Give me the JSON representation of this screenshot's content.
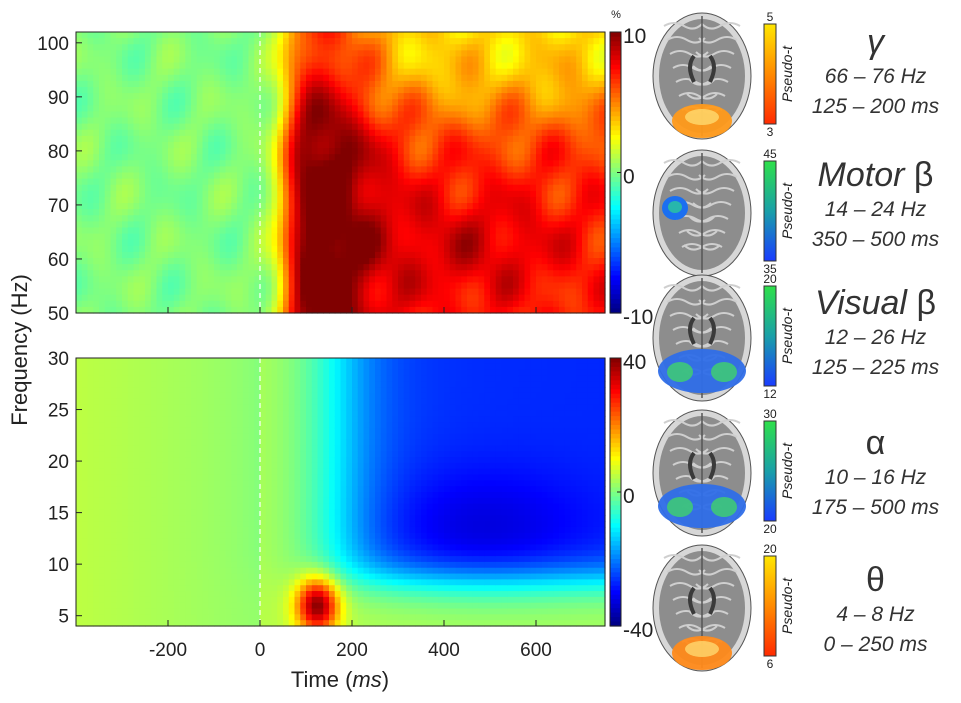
{
  "chart_data": [
    {
      "type": "heatmap",
      "title": "",
      "xlabel": "Time (ms)",
      "ylabel": "Frequency (Hz)",
      "xlim": [
        -400,
        750
      ],
      "ylim": [
        50,
        102
      ],
      "x_ticks": [
        -200,
        0,
        200,
        400,
        600
      ],
      "x_tick_labels": [
        "-200",
        "0",
        "200",
        "400",
        "600"
      ],
      "y_ticks": [
        50,
        60,
        70,
        80,
        90,
        100
      ],
      "y_tick_labels": [
        "50",
        "60",
        "70",
        "80",
        "90",
        "100"
      ],
      "show_x_tick_labels": false,
      "stimulus_onset_line_x": 0,
      "colorbar": {
        "min": -10,
        "max": 10,
        "unit": "%",
        "ticks": [
          10,
          0,
          -10
        ],
        "tick_labels": [
          "10",
          "0",
          "-10"
        ],
        "colormap": "jet"
      },
      "description_values": [
        {
          "region": "pre-stimulus (-400 to 0 ms, 50-102 Hz)",
          "value": 0
        },
        {
          "region": "post-stimulus 50-100 ms onset (all frequencies)",
          "value": 4
        },
        {
          "region": "100-750 ms, 50-90 Hz",
          "value": 8
        },
        {
          "region": "350-600 ms, 55-70 Hz (peak)",
          "value": 10
        },
        {
          "region": "400-750 ms, 90-102 Hz",
          "value": 4
        }
      ]
    },
    {
      "type": "heatmap",
      "title": "",
      "xlabel": "Time (ms)",
      "ylabel": "Frequency (Hz)",
      "xlim": [
        -400,
        750
      ],
      "ylim": [
        4,
        30
      ],
      "x_ticks": [
        -200,
        0,
        200,
        400,
        600
      ],
      "x_tick_labels": [
        "-200",
        "0",
        "200",
        "400",
        "600"
      ],
      "y_ticks": [
        5,
        10,
        15,
        20,
        25,
        30
      ],
      "y_tick_labels": [
        "5",
        "10",
        "15",
        "20",
        "25",
        "30"
      ],
      "stimulus_onset_line_x": 0,
      "colorbar": {
        "min": -40,
        "max": 40,
        "unit": "%",
        "ticks": [
          40,
          0,
          -40
        ],
        "tick_labels": [
          "40",
          "0",
          "-40"
        ],
        "colormap": "jet"
      },
      "description_values": [
        {
          "region": "pre-stimulus (-400 to 0 ms)",
          "value": 5
        },
        {
          "region": "100-170 ms, 4-9 Hz (theta peak)",
          "value": 35
        },
        {
          "region": "300-700 ms, 8-22 Hz (alpha/beta decrease)",
          "value": -38
        },
        {
          "region": "250-750 ms, 20-30 Hz",
          "value": -25
        }
      ]
    }
  ],
  "axes_shared": {
    "ylabel": "Frequency (Hz)",
    "xlabel_prefix": "Time (",
    "xlabel_unit": "ms",
    "xlabel_suffix": ")"
  },
  "colorbar_unit_label": "%",
  "colors": {
    "line_dashed": "#ffffff",
    "axis": "#222222",
    "text": "#222222",
    "brain_gray": "#8d8d8d"
  },
  "bands": [
    {
      "prefix": "",
      "symbol": "γ",
      "range": "66 – 76 Hz",
      "window": "125 – 200 ms",
      "legend_label": "Pseudo-t",
      "scale_top": "5",
      "scale_bottom": "3",
      "colorbar_colors": [
        "#ffe600",
        "#ff8a00",
        "#ff2a00"
      ],
      "blob_color": "#ff9a1a",
      "blob": "occipital"
    },
    {
      "prefix": "Motor ",
      "symbol": "β",
      "range": "14 – 24 Hz",
      "window": "350 – 500 ms",
      "legend_label": "Pseudo-t",
      "scale_top": "45",
      "scale_bottom": "35",
      "colorbar_colors": [
        "#2ee04a",
        "#1aa0a8",
        "#1a3cff"
      ],
      "blob_color": "#1b6ff0",
      "blob": "left-motor"
    },
    {
      "prefix": "Visual ",
      "symbol": "β",
      "range": "12 – 26 Hz",
      "window": "125 – 225 ms",
      "legend_label": "Pseudo-t",
      "scale_top": "20",
      "scale_bottom": "12",
      "colorbar_colors": [
        "#2ee04a",
        "#1aa0a8",
        "#1a3cff"
      ],
      "blob_color": "#2f6ee8",
      "blob": "bilateral-occipital"
    },
    {
      "prefix": "",
      "symbol": "α",
      "range": "10 – 16 Hz",
      "window": "175 – 500 ms",
      "legend_label": "Pseudo-t",
      "scale_top": "30",
      "scale_bottom": "20",
      "colorbar_colors": [
        "#2ee04a",
        "#1aa0a8",
        "#1a3cff"
      ],
      "blob_color": "#2f6ee8",
      "blob": "bilateral-occipital"
    },
    {
      "prefix": "",
      "symbol": "θ",
      "range": "4 – 8 Hz",
      "window": "0 – 250 ms",
      "legend_label": "Pseudo-t",
      "scale_top": "20",
      "scale_bottom": "6",
      "colorbar_colors": [
        "#ffe600",
        "#ff8a00",
        "#ff2a00"
      ],
      "blob_color": "#ff8a1a",
      "blob": "occipital"
    }
  ]
}
